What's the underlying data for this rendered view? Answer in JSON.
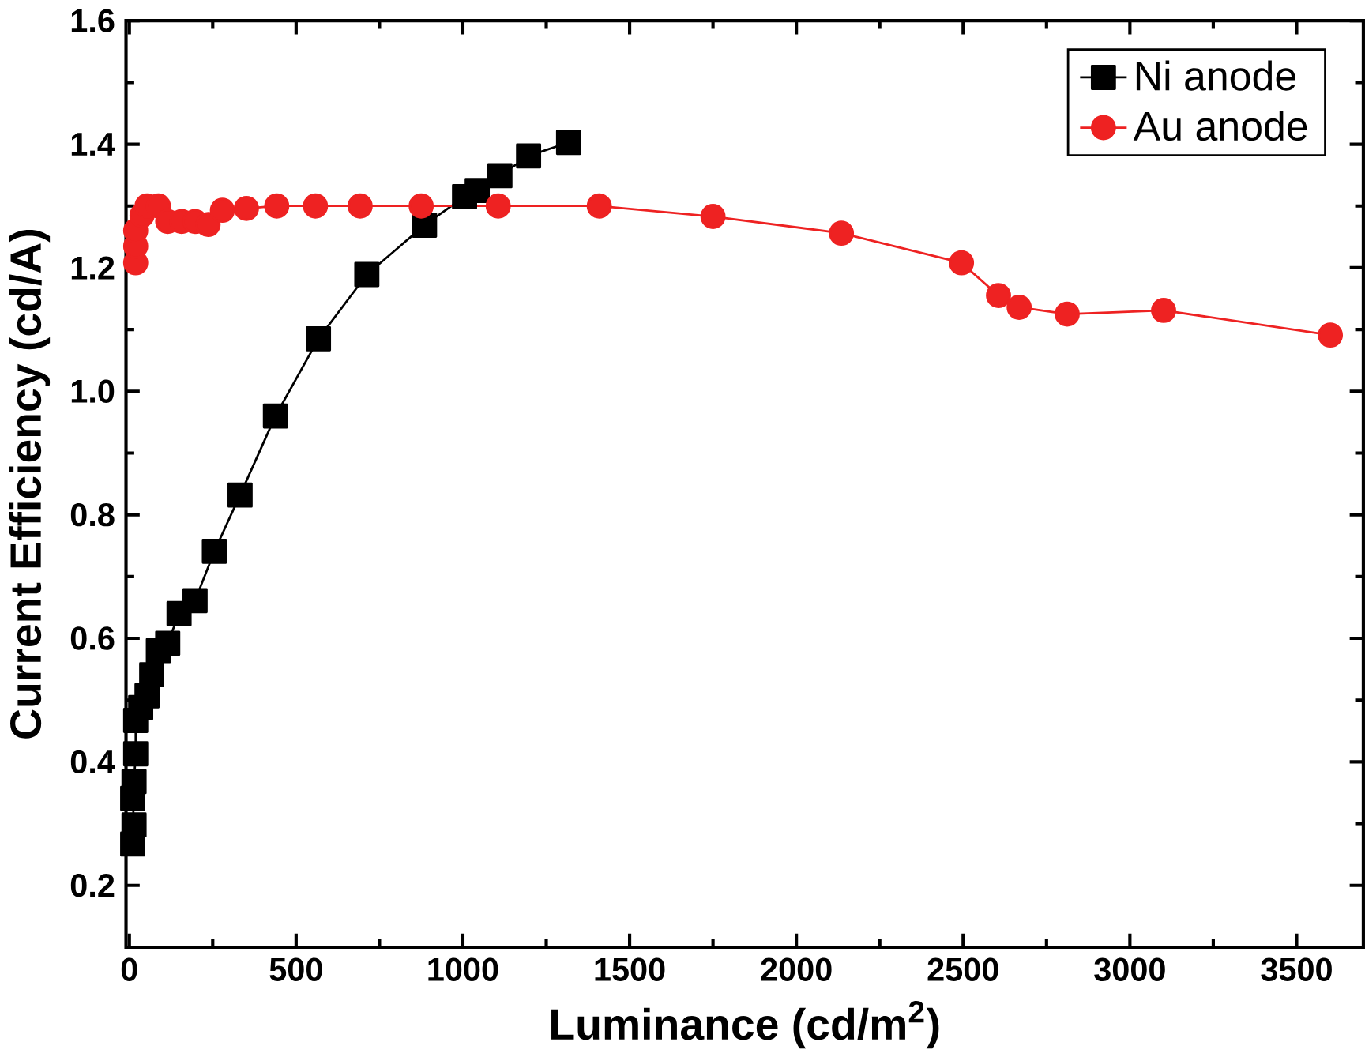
{
  "chart_data": {
    "type": "line",
    "xlabel": "Luminance (cd/m$^{2}$)",
    "ylabel": "Current Efficiency (cd/A)",
    "xlim": [
      -10,
      3700
    ],
    "ylim": [
      0.1,
      1.6
    ],
    "xticks": [
      0,
      500,
      1000,
      1500,
      2000,
      2500,
      3000,
      3500
    ],
    "yticks": [
      0.2,
      0.4,
      0.6,
      0.8,
      {
        "value": 1.0,
        "label": "1.0"
      },
      1.2,
      1.4,
      1.6
    ],
    "grid": false,
    "legend": "top right",
    "series": [
      {
        "name": "Ni  anode",
        "color": "#000000",
        "marker": "square",
        "x": [
          10,
          14,
          10,
          14,
          19,
          19,
          34,
          53,
          67,
          87,
          115,
          149,
          197,
          255,
          332,
          438,
          567,
          712,
          885,
          1005,
          1043,
          1111,
          1197,
          1317
        ],
        "values": [
          0.267,
          0.298,
          0.341,
          0.368,
          0.413,
          0.467,
          0.488,
          0.507,
          0.541,
          0.58,
          0.592,
          0.64,
          0.661,
          0.741,
          0.832,
          0.96,
          1.085,
          1.189,
          1.269,
          1.315,
          1.325,
          1.349,
          1.381,
          1.403
        ]
      },
      {
        "name": "Au anode",
        "color": "#ee2222",
        "marker": "circle",
        "x": [
          19,
          19,
          19,
          38,
          53,
          87,
          115,
          157,
          197,
          236,
          279,
          351,
          442,
          558,
          692,
          875,
          1106,
          1409,
          1750,
          2135,
          2495,
          2606,
          2668,
          2812,
          3101,
          3601
        ],
        "values": [
          1.208,
          1.235,
          1.26,
          1.285,
          1.3,
          1.3,
          1.275,
          1.275,
          1.275,
          1.27,
          1.293,
          1.296,
          1.3,
          1.3,
          1.3,
          1.3,
          1.3,
          1.3,
          1.283,
          1.256,
          1.208,
          1.155,
          1.136,
          1.125,
          1.131,
          1.091
        ]
      }
    ]
  }
}
